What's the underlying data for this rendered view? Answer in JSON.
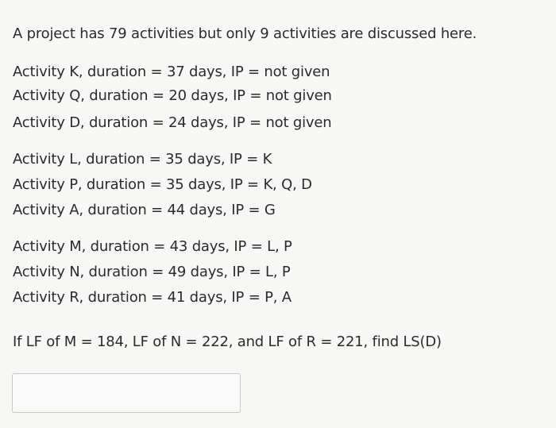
{
  "question": {
    "intro": "A project has 79 activities but only 9 activities are discussed here.",
    "activities": [
      "Activity K, duration = 37 days, IP = not given",
      "Activity Q, duration = 20 days, IP = not given",
      "Activity D, duration = 24 days, IP = not given",
      "Activity L, duration = 35 days, IP = K",
      "Activity P, duration = 35 days, IP = K, Q, D",
      "Activity A, duration = 44 days, IP = G",
      "Activity M, duration = 43 days, IP = L, P",
      "Activity N, duration = 49 days, IP = L, P",
      "Activity R, duration = 41 days, IP = P, A"
    ],
    "prompt": "If LF of M = 184, LF of N = 222, and LF of R = 221, find LS(D)"
  },
  "answer": {
    "value": ""
  }
}
